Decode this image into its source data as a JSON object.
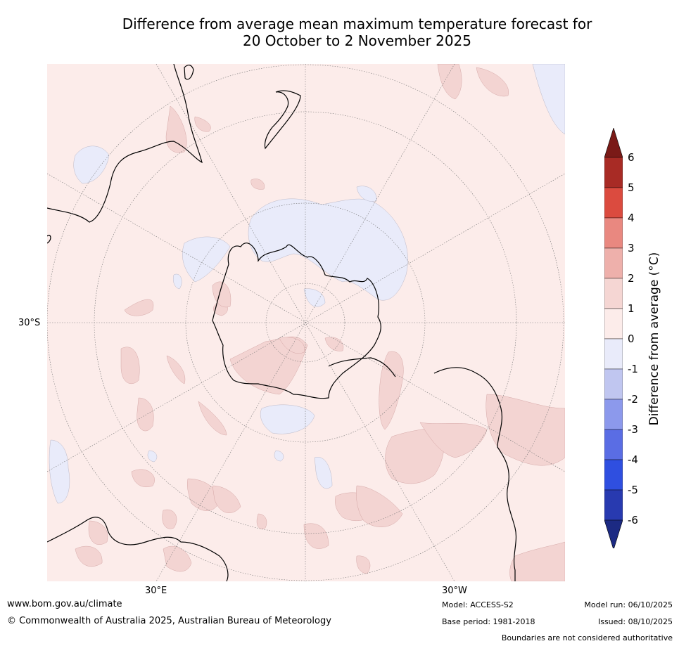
{
  "title_line1": "Difference from average mean maximum temperature forecast for",
  "title_line2": "20 October to 2 November 2025",
  "map": {
    "lat_label": "30°S",
    "lon_label_east": "30°E",
    "lon_label_west": "30°W",
    "colors": {
      "background": "#fcecea",
      "land_outline": "#000000",
      "warm_patch": "#f3d4d2",
      "cool_patch": "#e9ebfa",
      "grid": "#666666"
    }
  },
  "colorbar": {
    "label": "Difference from average (°C)",
    "ticks": [
      "6",
      "5",
      "4",
      "3",
      "2",
      "1",
      "0",
      "-1",
      "-2",
      "-3",
      "-4",
      "-5",
      "-6"
    ],
    "colors": [
      "#7a1a17",
      "#a82b25",
      "#db4b3f",
      "#e98880",
      "#eeb0ab",
      "#f5d6d3",
      "#fcecea",
      "#e9ebfa",
      "#c0c6f0",
      "#8c99ec",
      "#5a6de4",
      "#2f4fe0",
      "#283ab0",
      "#1c2a83"
    ]
  },
  "footer": {
    "website": "www.bom.gov.au/climate",
    "copyright": "© Commonwealth of Australia 2025, Australian Bureau of Meteorology",
    "model": "Model: ACCESS-S2",
    "base_period": "Base period: 1981-2018",
    "model_run": "Model run: 06/10/2025",
    "issued": "Issued: 08/10/2025",
    "disclaimer": "Boundaries are not considered authoritative"
  }
}
